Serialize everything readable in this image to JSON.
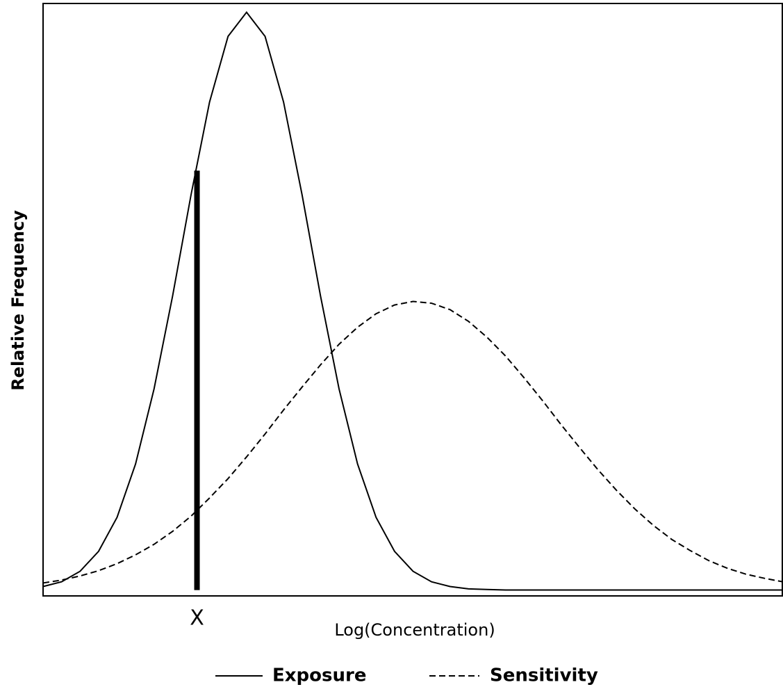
{
  "chart_data": {
    "type": "line",
    "xlabel": "Log(Concentration)",
    "ylabel": "Relative Frequency",
    "xlim": [
      0,
      100
    ],
    "ylim": [
      -1,
      100
    ],
    "x": [
      0,
      2.5,
      5,
      7.5,
      10,
      12.5,
      15,
      17.5,
      20,
      22.5,
      25,
      27.5,
      30,
      32.5,
      35,
      37.5,
      40,
      42.5,
      45,
      47.5,
      50,
      52.5,
      55,
      57.5,
      60,
      62.5,
      65,
      67.5,
      70,
      72.5,
      75,
      77.5,
      80,
      82.5,
      85,
      87.5,
      90,
      92.5,
      95,
      97.5,
      100
    ],
    "series": [
      {
        "name": "Exposure",
        "color": "#000000",
        "style": "solid",
        "values": [
          0.6,
          1.4,
          3.2,
          6.6,
          12.4,
          21.5,
          34.3,
          50.1,
          67.4,
          83.2,
          94.4,
          98.5,
          94.4,
          83.2,
          67.4,
          50.1,
          34.3,
          21.5,
          12.4,
          6.6,
          3.2,
          1.4,
          0.6,
          0.2,
          0.1,
          0,
          0,
          0,
          0,
          0,
          0,
          0,
          0,
          0,
          0,
          0,
          0,
          0,
          0,
          0,
          0
        ]
      },
      {
        "name": "Sensitivity",
        "color": "#000000",
        "style": "dashed",
        "values": [
          1.2,
          1.7,
          2.4,
          3.3,
          4.5,
          6.0,
          7.8,
          10.0,
          12.6,
          15.7,
          19.0,
          22.7,
          26.6,
          30.7,
          34.6,
          38.4,
          41.9,
          44.8,
          47.1,
          48.6,
          49.2,
          48.9,
          47.8,
          45.8,
          43.1,
          39.9,
          36.2,
          32.3,
          28.2,
          24.3,
          20.5,
          17.0,
          13.8,
          11.0,
          8.6,
          6.7,
          5.0,
          3.7,
          2.7,
          2.0,
          1.4
        ]
      }
    ],
    "marker": {
      "label": "X",
      "x": 20.8,
      "height": 71.5
    }
  }
}
